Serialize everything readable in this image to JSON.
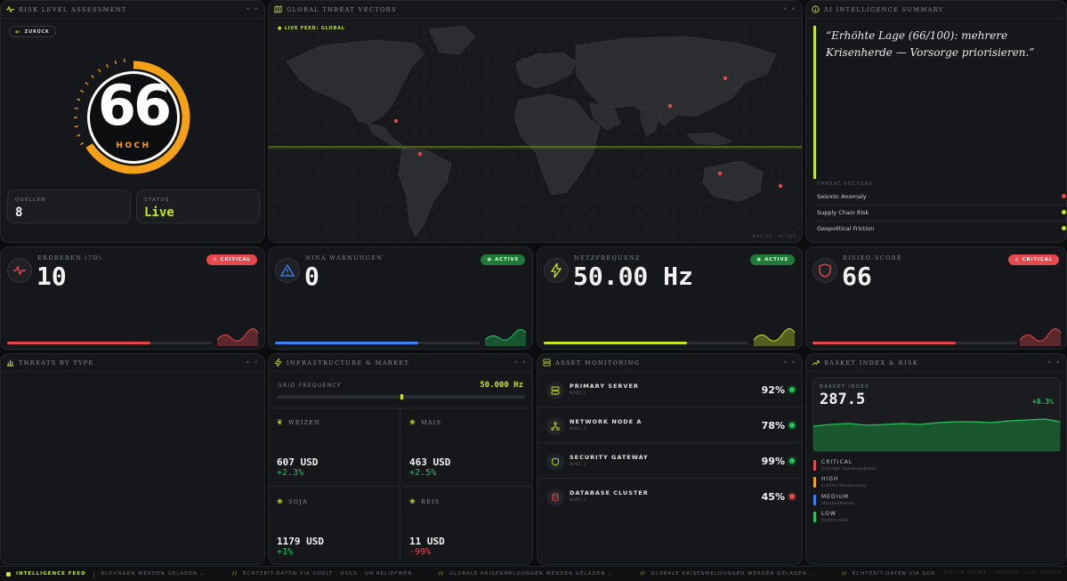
{
  "colors": {
    "accent": "#c6e527",
    "critical": "#e5484d",
    "orange": "#f5a019",
    "blue": "#3b82f6",
    "green": "#22c55e"
  },
  "risk": {
    "header": "RISK LEVEL ASSESSMENT",
    "back_label": "ZURÜCK",
    "score": "66",
    "score_fraction": 0.66,
    "level": "HOCH",
    "sources_label": "QUELLEN",
    "sources_value": "8",
    "status_label": "STATUS",
    "status_value": "Live"
  },
  "map": {
    "header": "GLOBAL THREAT VECTORS",
    "live_label": "● LIVE FEED: GLOBAL",
    "corner": "MAP-01 · ACTIVE"
  },
  "ai": {
    "header": "AI INTELLIGENCE SUMMARY",
    "quote": "“Erhöhte Lage (66/100): mehrere Krisenherde — Vorsorge priorisieren.”",
    "vectors_title": "THREAT VECTORS",
    "vectors": [
      {
        "name": "Seismic Anomaly",
        "color": "#e5484d"
      },
      {
        "name": "Supply Chain Risk",
        "color": "#c6e527"
      },
      {
        "name": "Geopolitical Friction",
        "color": "#c6e527"
      }
    ]
  },
  "kpis": [
    {
      "label": "ERDBEBEN (7D)",
      "value": "10",
      "badge": "CRITICAL",
      "badge_type": "crit",
      "icon": "pulse-icon",
      "bar_fraction": 0.7,
      "bar_color": "#e5484d"
    },
    {
      "label": "NINA WARNUNGEN",
      "value": "0",
      "badge": "ACTIVE",
      "badge_type": "act",
      "icon": "warning-icon",
      "bar_fraction": 0.7,
      "bar_color": "#3b82f6"
    },
    {
      "label": "NETZFREQUENZ",
      "value": "50.00 Hz",
      "badge": "ACTIVE",
      "badge_type": "act",
      "icon": "lightning-icon",
      "bar_fraction": 0.7,
      "bar_color": "#c6e527"
    },
    {
      "label": "RISIKO-SCORE",
      "value": "66",
      "badge": "CRITICAL",
      "badge_type": "crit",
      "icon": "shield-icon",
      "bar_fraction": 0.7,
      "bar_color": "#e5484d"
    }
  ],
  "threats": {
    "header": "THREATS BY TYPE"
  },
  "infra": {
    "header": "INFRASTRUCTURE & MARKET",
    "grid_label": "GRID FREQUENCY",
    "grid_value": "50.000 Hz",
    "grid_marker": 0.5,
    "cells": [
      {
        "name": "WEIZEN",
        "value": "607 USD",
        "change": "+2.3%",
        "color": "#22c55e"
      },
      {
        "name": "MAIS",
        "value": "463 USD",
        "change": "+2.5%",
        "color": "#22c55e"
      },
      {
        "name": "SOJA",
        "value": "1179 USD",
        "change": "+1%",
        "color": "#22c55e"
      },
      {
        "name": "REIS",
        "value": "11 USD",
        "change": "-99%",
        "color": "#e5484d"
      }
    ]
  },
  "assets": {
    "header": "ASSET MONITORING",
    "items": [
      {
        "name": "PRIMARY SERVER",
        "sub": "NODE_1",
        "pct": "92%",
        "dot": "#22c55e",
        "icon": "server-icon"
      },
      {
        "name": "NETWORK NODE A",
        "sub": "NODE_2",
        "pct": "78%",
        "dot": "#22c55e",
        "icon": "network-icon"
      },
      {
        "name": "SECURITY GATEWAY",
        "sub": "NODE_3",
        "pct": "99%",
        "dot": "#22c55e",
        "icon": "shield-icon"
      },
      {
        "name": "DATABASE CLUSTER",
        "sub": "NODE_4",
        "pct": "45%",
        "dot": "#e5484d",
        "icon": "database-icon"
      }
    ]
  },
  "basket": {
    "header": "BASKET INDEX & RISK",
    "label": "BASKET INDEX",
    "value": "287.5",
    "change": "+8.3%",
    "legend": [
      {
        "name": "CRITICAL",
        "sub": "Sofortiger Handlungsbedarf",
        "color": "#e5484d"
      },
      {
        "name": "HIGH",
        "sub": "Erhöhte Überwachung",
        "color": "#f5a019"
      },
      {
        "name": "MEDIUM",
        "sub": "Standardbetrieb",
        "color": "#3b82f6"
      },
      {
        "name": "LOW",
        "sub": "System stabil",
        "color": "#22c55e"
      }
    ]
  },
  "ticker": {
    "label": "INTELLIGENCE FEED",
    "items": [
      "ELDUNGEN WERDEN GELADEN …",
      "ECHTZEIT-DATEN VIA GDELT · USGS · UN RELIEFWEB",
      "GLOBALE KRISENMELDUNGEN WERDEN GELADEN …",
      "GLOBALE KRISENMELDUNGEN WERDEN GELADEN …",
      "ECHTZEIT-DATEN VIA GDELT · USGS · UN RELIEFWEB"
    ],
    "right": "SYSTEM ONLINE · UPDATED · LIVE STREAM"
  }
}
